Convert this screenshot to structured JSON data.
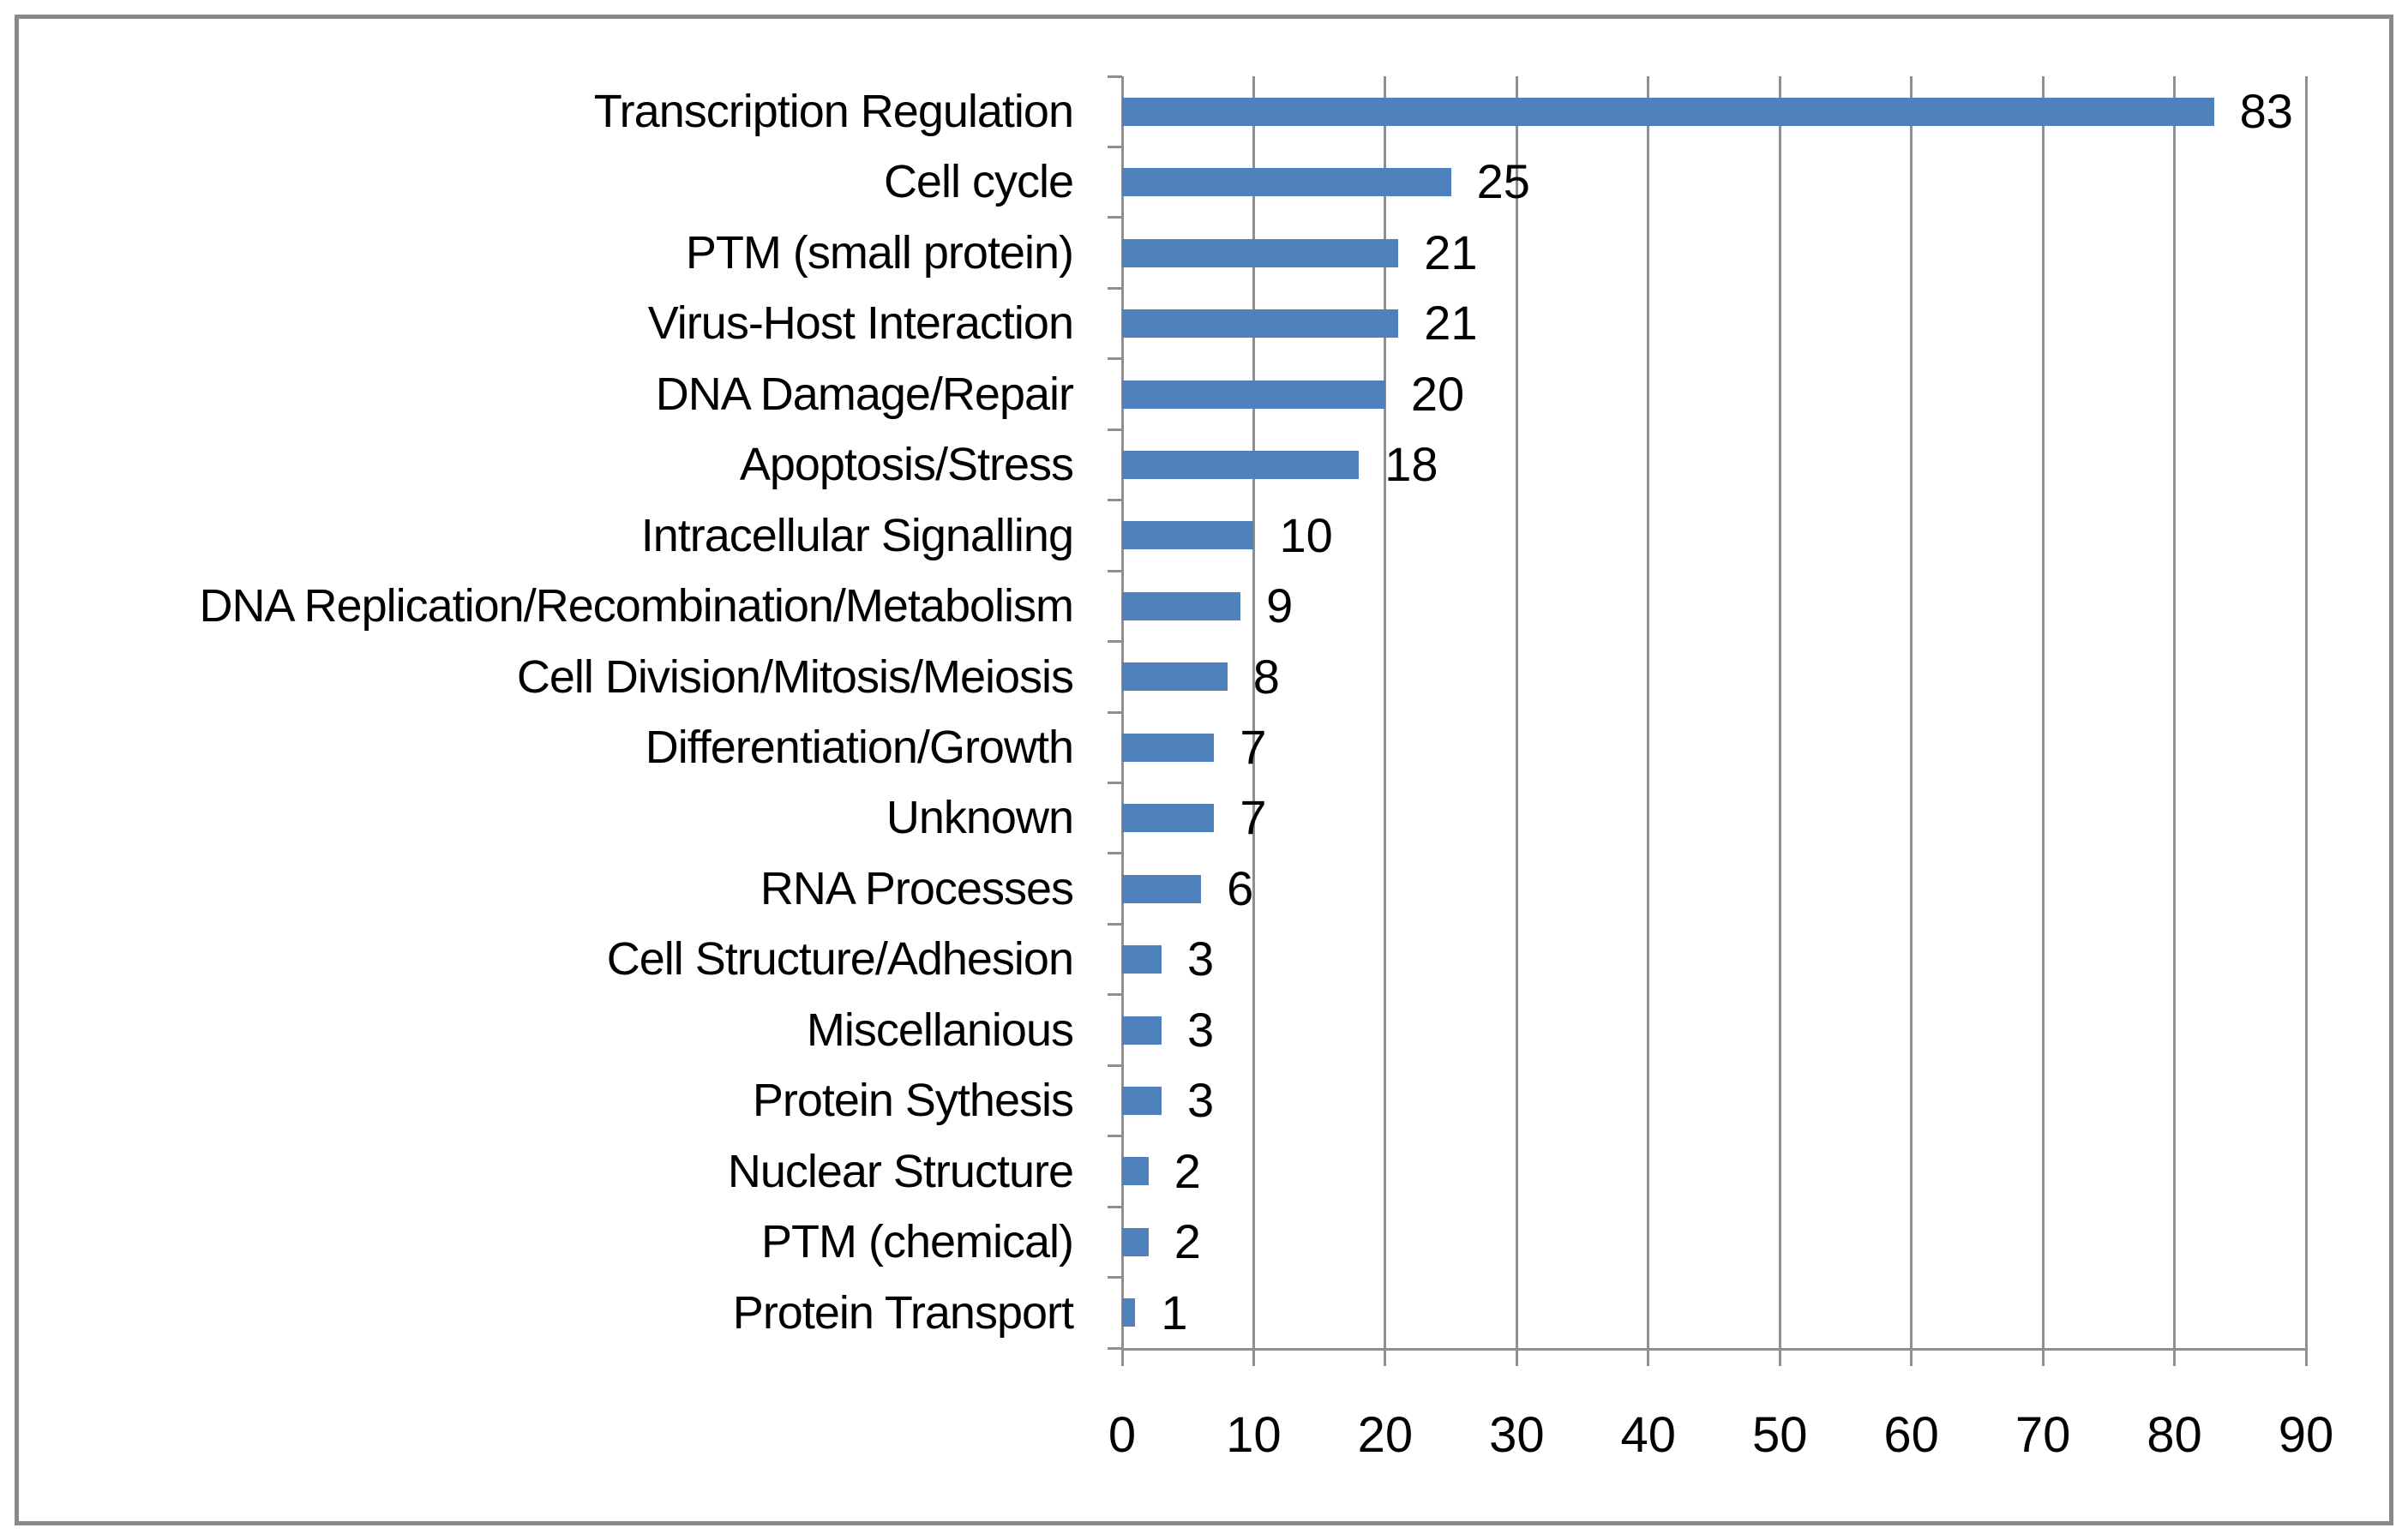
{
  "chart_data": {
    "type": "bar",
    "orientation": "horizontal",
    "title": "",
    "xlabel": "",
    "ylabel": "",
    "categories": [
      "Transcription Regulation",
      "Cell cycle",
      "PTM (small protein)",
      "Virus-Host Interaction",
      "DNA Damage/Repair",
      "Apoptosis/Stress",
      "Intracellular Signalling",
      "DNA Replication/Recombination/Metabolism",
      "Cell Division/Mitosis/Meiosis",
      "Differentiation/Growth",
      "Unknown",
      "RNA Processes",
      "Cell Structure/Adhesion",
      "Miscellanious",
      "Protein Sythesis",
      "Nuclear Structure",
      "PTM (chemical)",
      "Protein Transport"
    ],
    "values": [
      83,
      25,
      21,
      21,
      20,
      18,
      10,
      9,
      8,
      7,
      7,
      6,
      3,
      3,
      3,
      2,
      2,
      1
    ],
    "show_data_labels": true,
    "xlim": [
      0,
      90
    ],
    "x_ticks": [
      0,
      10,
      20,
      30,
      40,
      50,
      60,
      70,
      80,
      90
    ],
    "grid": "vertical-gridlines-only",
    "legend": "none",
    "colors": {
      "bar": "#4F81BD",
      "gridline": "#8F8F8F",
      "axis": "#8F8F8F",
      "frame_border": "#898989",
      "text": "#000000",
      "background": "#FFFFFF"
    }
  }
}
